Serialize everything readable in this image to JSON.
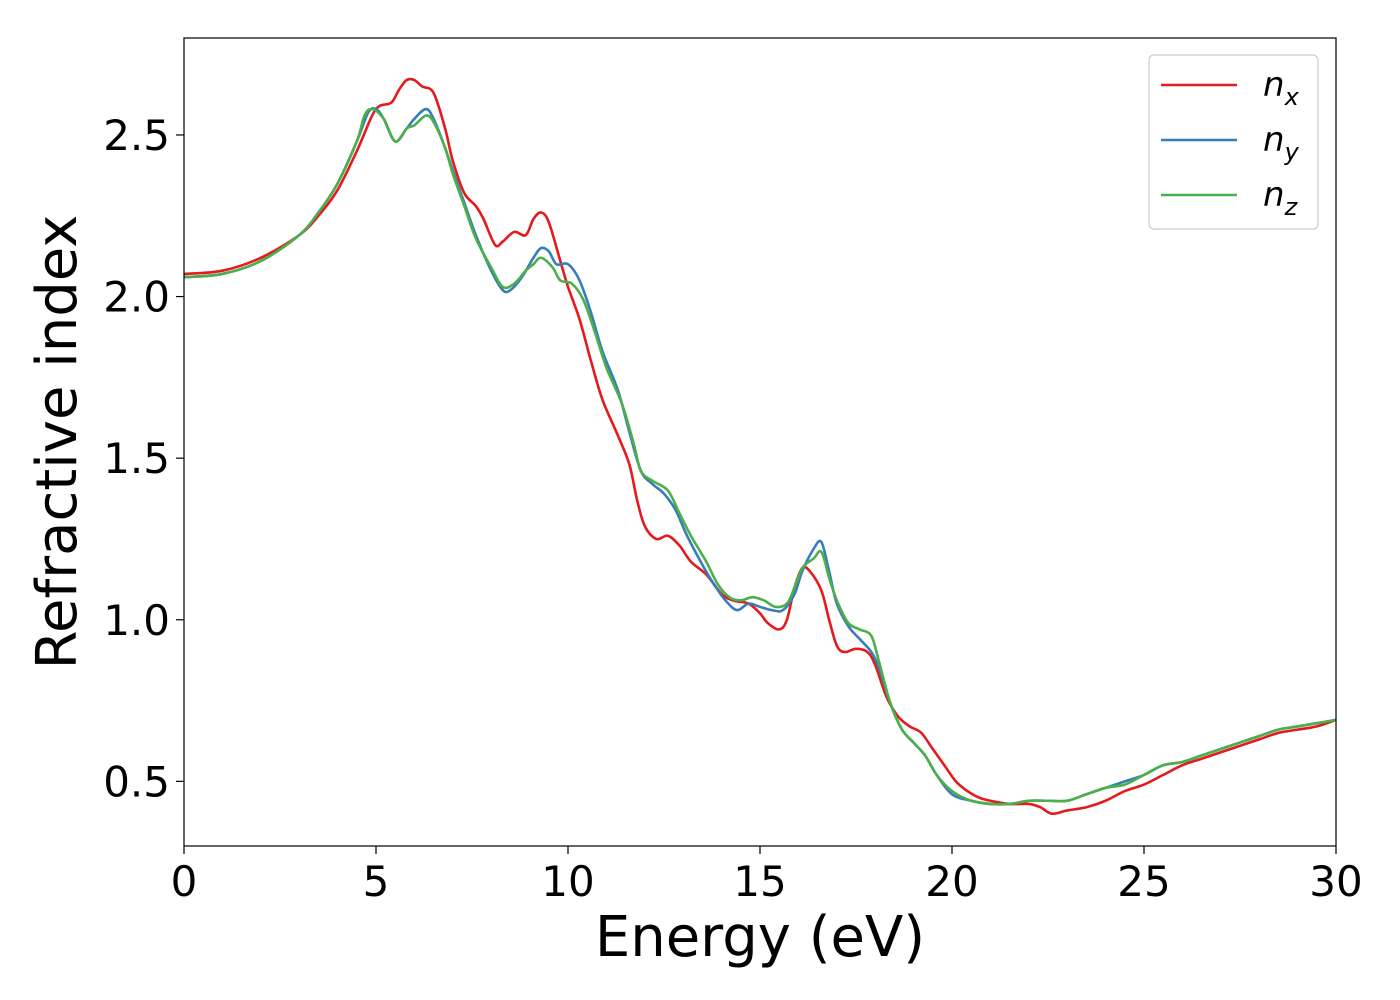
{
  "chart_data": {
    "type": "line",
    "xlabel": "Energy (eV)",
    "ylabel": "Refractive index",
    "xlim": [
      0,
      30
    ],
    "ylim": [
      0.3,
      2.8
    ],
    "grid": false,
    "legend_position": "top-right",
    "x_ticks": [
      0,
      5,
      10,
      15,
      20,
      25,
      30
    ],
    "x_tick_labels": [
      "0",
      "5",
      "10",
      "15",
      "20",
      "25",
      "30"
    ],
    "y_ticks": [
      0.5,
      1.0,
      1.5,
      2.0,
      2.5
    ],
    "y_tick_labels": [
      "0.5",
      "1.0",
      "1.5",
      "2.0",
      "2.5"
    ],
    "series": [
      {
        "name": "n_x",
        "label_base": "n",
        "label_sub": "x",
        "color": "#e41a1c",
        "points": [
          [
            0,
            2.07
          ],
          [
            1,
            2.08
          ],
          [
            2,
            2.12
          ],
          [
            3,
            2.19
          ],
          [
            3.5,
            2.25
          ],
          [
            4,
            2.33
          ],
          [
            4.5,
            2.45
          ],
          [
            4.9,
            2.56
          ],
          [
            5.1,
            2.59
          ],
          [
            5.4,
            2.6
          ],
          [
            5.6,
            2.64
          ],
          [
            5.8,
            2.67
          ],
          [
            6.0,
            2.67
          ],
          [
            6.2,
            2.65
          ],
          [
            6.5,
            2.63
          ],
          [
            6.8,
            2.52
          ],
          [
            7.0,
            2.42
          ],
          [
            7.3,
            2.32
          ],
          [
            7.6,
            2.28
          ],
          [
            7.8,
            2.24
          ],
          [
            8.1,
            2.16
          ],
          [
            8.3,
            2.17
          ],
          [
            8.6,
            2.2
          ],
          [
            8.9,
            2.19
          ],
          [
            9.1,
            2.24
          ],
          [
            9.3,
            2.26
          ],
          [
            9.5,
            2.23
          ],
          [
            9.8,
            2.11
          ],
          [
            10.0,
            2.03
          ],
          [
            10.3,
            1.93
          ],
          [
            10.6,
            1.8
          ],
          [
            10.9,
            1.68
          ],
          [
            11.3,
            1.57
          ],
          [
            11.6,
            1.48
          ],
          [
            11.8,
            1.37
          ],
          [
            12.0,
            1.29
          ],
          [
            12.3,
            1.25
          ],
          [
            12.6,
            1.26
          ],
          [
            12.9,
            1.23
          ],
          [
            13.2,
            1.18
          ],
          [
            13.6,
            1.14
          ],
          [
            14.0,
            1.08
          ],
          [
            14.3,
            1.06
          ],
          [
            14.7,
            1.05
          ],
          [
            15.0,
            1.02
          ],
          [
            15.2,
            0.99
          ],
          [
            15.5,
            0.97
          ],
          [
            15.7,
            1.0
          ],
          [
            15.9,
            1.1
          ],
          [
            16.1,
            1.16
          ],
          [
            16.3,
            1.15
          ],
          [
            16.6,
            1.09
          ],
          [
            16.8,
            1.0
          ],
          [
            17.0,
            0.92
          ],
          [
            17.2,
            0.9
          ],
          [
            17.5,
            0.91
          ],
          [
            17.8,
            0.9
          ],
          [
            18.0,
            0.86
          ],
          [
            18.3,
            0.76
          ],
          [
            18.6,
            0.7
          ],
          [
            18.9,
            0.67
          ],
          [
            19.2,
            0.65
          ],
          [
            19.5,
            0.6
          ],
          [
            19.8,
            0.55
          ],
          [
            20.1,
            0.5
          ],
          [
            20.4,
            0.47
          ],
          [
            20.7,
            0.45
          ],
          [
            21.0,
            0.44
          ],
          [
            21.5,
            0.43
          ],
          [
            22.0,
            0.43
          ],
          [
            22.3,
            0.42
          ],
          [
            22.6,
            0.4
          ],
          [
            23.0,
            0.41
          ],
          [
            23.5,
            0.42
          ],
          [
            24.0,
            0.44
          ],
          [
            24.5,
            0.47
          ],
          [
            25.0,
            0.49
          ],
          [
            25.5,
            0.52
          ],
          [
            26.0,
            0.55
          ],
          [
            26.5,
            0.57
          ],
          [
            27.0,
            0.59
          ],
          [
            27.5,
            0.61
          ],
          [
            28.0,
            0.63
          ],
          [
            28.5,
            0.65
          ],
          [
            29.0,
            0.66
          ],
          [
            29.5,
            0.67
          ],
          [
            30,
            0.69
          ]
        ]
      },
      {
        "name": "n_y",
        "label_base": "n",
        "label_sub": "y",
        "color": "#377eb8",
        "points": [
          [
            0,
            2.06
          ],
          [
            1,
            2.07
          ],
          [
            2,
            2.11
          ],
          [
            3,
            2.19
          ],
          [
            3.5,
            2.26
          ],
          [
            4,
            2.35
          ],
          [
            4.5,
            2.48
          ],
          [
            4.8,
            2.57
          ],
          [
            5.0,
            2.58
          ],
          [
            5.2,
            2.55
          ],
          [
            5.5,
            2.48
          ],
          [
            5.8,
            2.52
          ],
          [
            6.0,
            2.55
          ],
          [
            6.3,
            2.58
          ],
          [
            6.5,
            2.55
          ],
          [
            6.8,
            2.46
          ],
          [
            7.0,
            2.39
          ],
          [
            7.3,
            2.29
          ],
          [
            7.6,
            2.19
          ],
          [
            8.0,
            2.08
          ],
          [
            8.3,
            2.02
          ],
          [
            8.5,
            2.02
          ],
          [
            8.8,
            2.06
          ],
          [
            9.1,
            2.12
          ],
          [
            9.3,
            2.15
          ],
          [
            9.5,
            2.14
          ],
          [
            9.7,
            2.1
          ],
          [
            10.0,
            2.1
          ],
          [
            10.3,
            2.05
          ],
          [
            10.6,
            1.95
          ],
          [
            10.9,
            1.83
          ],
          [
            11.3,
            1.71
          ],
          [
            11.6,
            1.58
          ],
          [
            11.9,
            1.46
          ],
          [
            12.2,
            1.42
          ],
          [
            12.5,
            1.39
          ],
          [
            12.8,
            1.34
          ],
          [
            13.1,
            1.26
          ],
          [
            13.5,
            1.17
          ],
          [
            13.8,
            1.11
          ],
          [
            14.1,
            1.06
          ],
          [
            14.4,
            1.03
          ],
          [
            14.7,
            1.05
          ],
          [
            15.0,
            1.04
          ],
          [
            15.3,
            1.03
          ],
          [
            15.6,
            1.03
          ],
          [
            15.9,
            1.08
          ],
          [
            16.1,
            1.15
          ],
          [
            16.4,
            1.22
          ],
          [
            16.6,
            1.24
          ],
          [
            16.8,
            1.15
          ],
          [
            17.0,
            1.05
          ],
          [
            17.3,
            0.98
          ],
          [
            17.6,
            0.94
          ],
          [
            17.9,
            0.9
          ],
          [
            18.1,
            0.85
          ],
          [
            18.4,
            0.74
          ],
          [
            18.7,
            0.66
          ],
          [
            19.0,
            0.62
          ],
          [
            19.3,
            0.58
          ],
          [
            19.6,
            0.52
          ],
          [
            20.0,
            0.46
          ],
          [
            20.5,
            0.44
          ],
          [
            21.0,
            0.43
          ],
          [
            21.5,
            0.43
          ],
          [
            22.0,
            0.44
          ],
          [
            22.5,
            0.44
          ],
          [
            23.0,
            0.44
          ],
          [
            23.5,
            0.46
          ],
          [
            24.0,
            0.48
          ],
          [
            24.5,
            0.5
          ],
          [
            25.0,
            0.52
          ],
          [
            25.5,
            0.55
          ],
          [
            26.0,
            0.56
          ],
          [
            26.5,
            0.58
          ],
          [
            27.0,
            0.6
          ],
          [
            27.5,
            0.62
          ],
          [
            28.0,
            0.64
          ],
          [
            28.5,
            0.66
          ],
          [
            29.0,
            0.67
          ],
          [
            29.5,
            0.68
          ],
          [
            30,
            0.69
          ]
        ]
      },
      {
        "name": "n_z",
        "label_base": "n",
        "label_sub": "z",
        "color": "#4daf4a",
        "points": [
          [
            0,
            2.06
          ],
          [
            1,
            2.07
          ],
          [
            2,
            2.11
          ],
          [
            3,
            2.19
          ],
          [
            3.5,
            2.26
          ],
          [
            4,
            2.35
          ],
          [
            4.5,
            2.48
          ],
          [
            4.7,
            2.56
          ],
          [
            4.9,
            2.58
          ],
          [
            5.2,
            2.55
          ],
          [
            5.5,
            2.48
          ],
          [
            5.8,
            2.52
          ],
          [
            6.0,
            2.53
          ],
          [
            6.3,
            2.56
          ],
          [
            6.5,
            2.54
          ],
          [
            6.8,
            2.46
          ],
          [
            7.0,
            2.38
          ],
          [
            7.3,
            2.28
          ],
          [
            7.6,
            2.18
          ],
          [
            8.0,
            2.09
          ],
          [
            8.3,
            2.03
          ],
          [
            8.6,
            2.04
          ],
          [
            8.9,
            2.08
          ],
          [
            9.1,
            2.1
          ],
          [
            9.3,
            2.12
          ],
          [
            9.6,
            2.09
          ],
          [
            9.8,
            2.05
          ],
          [
            10.1,
            2.04
          ],
          [
            10.4,
            1.99
          ],
          [
            10.7,
            1.89
          ],
          [
            11.0,
            1.78
          ],
          [
            11.4,
            1.67
          ],
          [
            11.7,
            1.55
          ],
          [
            11.9,
            1.46
          ],
          [
            12.2,
            1.43
          ],
          [
            12.6,
            1.4
          ],
          [
            12.9,
            1.33
          ],
          [
            13.2,
            1.26
          ],
          [
            13.6,
            1.18
          ],
          [
            13.9,
            1.11
          ],
          [
            14.2,
            1.07
          ],
          [
            14.5,
            1.06
          ],
          [
            14.8,
            1.07
          ],
          [
            15.1,
            1.06
          ],
          [
            15.4,
            1.04
          ],
          [
            15.7,
            1.05
          ],
          [
            15.9,
            1.1
          ],
          [
            16.1,
            1.16
          ],
          [
            16.4,
            1.19
          ],
          [
            16.6,
            1.21
          ],
          [
            16.8,
            1.13
          ],
          [
            17.0,
            1.06
          ],
          [
            17.3,
            0.99
          ],
          [
            17.6,
            0.97
          ],
          [
            17.9,
            0.95
          ],
          [
            18.1,
            0.87
          ],
          [
            18.4,
            0.74
          ],
          [
            18.7,
            0.66
          ],
          [
            19.0,
            0.62
          ],
          [
            19.3,
            0.58
          ],
          [
            19.6,
            0.52
          ],
          [
            20.0,
            0.47
          ],
          [
            20.5,
            0.44
          ],
          [
            21.0,
            0.43
          ],
          [
            21.5,
            0.43
          ],
          [
            22.0,
            0.44
          ],
          [
            22.5,
            0.44
          ],
          [
            23.0,
            0.44
          ],
          [
            23.5,
            0.46
          ],
          [
            24.0,
            0.48
          ],
          [
            24.5,
            0.49
          ],
          [
            25.0,
            0.52
          ],
          [
            25.5,
            0.55
          ],
          [
            26.0,
            0.56
          ],
          [
            26.5,
            0.58
          ],
          [
            27.0,
            0.6
          ],
          [
            27.5,
            0.62
          ],
          [
            28.0,
            0.64
          ],
          [
            28.5,
            0.66
          ],
          [
            29.0,
            0.67
          ],
          [
            29.5,
            0.68
          ],
          [
            30,
            0.69
          ]
        ]
      }
    ]
  }
}
